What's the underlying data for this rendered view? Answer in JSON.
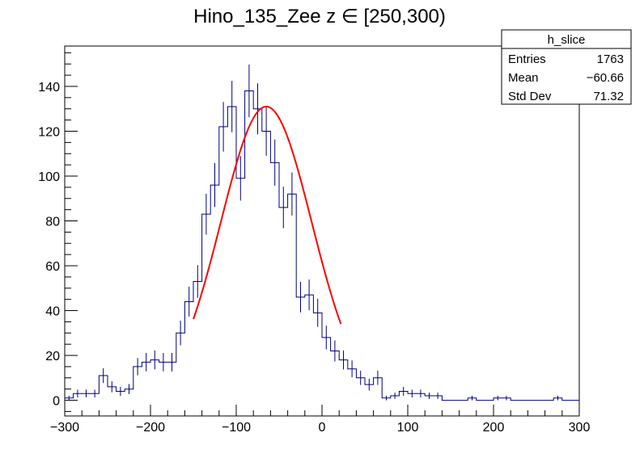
{
  "chart_data": {
    "type": "histogram",
    "title": "Hino_135_Zee z  ∈ [250,300)",
    "xlabel": "",
    "ylabel": "",
    "xlim": [
      -300,
      300
    ],
    "ylim": [
      -7,
      158
    ],
    "bin_width": 10,
    "x_ticks": [
      -300,
      -200,
      -100,
      0,
      100,
      200,
      300
    ],
    "x_tick_labels": [
      "−300",
      "−200",
      "−100",
      "0",
      "100",
      "200",
      "300"
    ],
    "y_ticks": [
      0,
      20,
      40,
      60,
      80,
      100,
      120,
      140
    ],
    "y_tick_labels": [
      "0",
      "20",
      "40",
      "60",
      "80",
      "100",
      "120",
      "140"
    ],
    "series": [
      {
        "name": "h_slice",
        "color": "#00007f",
        "bin_low_edges": [
          -300,
          -290,
          -280,
          -270,
          -260,
          -250,
          -240,
          -230,
          -220,
          -210,
          -200,
          -190,
          -180,
          -170,
          -160,
          -150,
          -140,
          -130,
          -120,
          -110,
          -100,
          -90,
          -80,
          -70,
          -60,
          -50,
          -40,
          -30,
          -20,
          -10,
          0,
          10,
          20,
          30,
          40,
          50,
          60,
          70,
          80,
          90,
          100,
          110,
          120,
          130,
          140,
          150,
          160,
          170,
          180,
          190,
          200,
          210,
          220,
          230,
          240,
          250,
          260,
          270,
          280,
          290
        ],
        "values": [
          1,
          3,
          3,
          3,
          11,
          6,
          4,
          5,
          15,
          17,
          18,
          17,
          17,
          30,
          44,
          53,
          83,
          96,
          122,
          131,
          99,
          138,
          130,
          120,
          106,
          86,
          92,
          46,
          47,
          39,
          28,
          22,
          18,
          14,
          10,
          7,
          10,
          1,
          2,
          4,
          3,
          3,
          2,
          2,
          0,
          0,
          0,
          1,
          0,
          0,
          1,
          1,
          0,
          0,
          0,
          0,
          0,
          1,
          0,
          0
        ]
      }
    ],
    "fit": {
      "name": "gaussian fit",
      "color": "#ff0000",
      "amplitude": 131,
      "mean": -65,
      "sigma": 53,
      "x_range": [
        -150,
        22
      ]
    },
    "stats_box": {
      "title": "h_slice",
      "rows": [
        {
          "label": "Entries",
          "value": "1763"
        },
        {
          "label": "Mean",
          "value": "−60.66"
        },
        {
          "label": "Std Dev",
          "value": "71.32"
        }
      ]
    }
  }
}
